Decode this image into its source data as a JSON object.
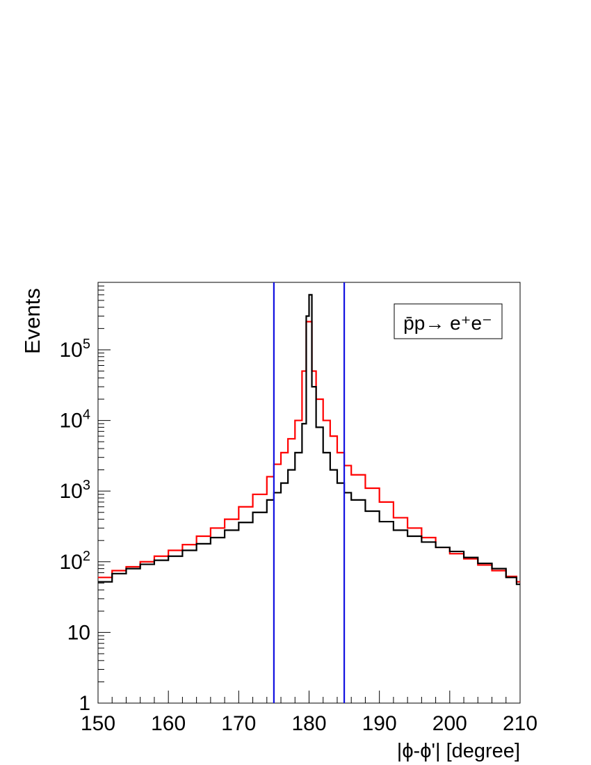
{
  "chart_data": {
    "type": "step-histogram",
    "title": "",
    "xlabel": "|ϕ-ϕ'| [degree]",
    "ylabel": "Events",
    "xlim": [
      150,
      210
    ],
    "ylim": [
      1,
      900000
    ],
    "y_scale": "log",
    "x_ticks": [
      150,
      160,
      170,
      180,
      190,
      200,
      210
    ],
    "x_tick_labels": [
      "150",
      "160",
      "170",
      "180",
      "190",
      "200",
      "210"
    ],
    "y_ticks": [
      {
        "value": 1,
        "base": "1",
        "exp": ""
      },
      {
        "value": 10,
        "base": "10",
        "exp": ""
      },
      {
        "value": 100,
        "base": "10",
        "exp": "2"
      },
      {
        "value": 1000,
        "base": "10",
        "exp": "3"
      },
      {
        "value": 10000,
        "base": "10",
        "exp": "4"
      },
      {
        "value": 100000,
        "base": "10",
        "exp": "5"
      }
    ],
    "legend": {
      "position": "top-right",
      "process_label": "p̄p→ e⁺e⁻"
    },
    "cut_lines": {
      "color": "#1010e0",
      "x": [
        175,
        185
      ]
    },
    "series": [
      {
        "color": "#ff0000",
        "bins": [
          {
            "x": 150,
            "y": 60
          },
          {
            "x": 152,
            "y": 75
          },
          {
            "x": 154,
            "y": 85
          },
          {
            "x": 156,
            "y": 100
          },
          {
            "x": 158,
            "y": 120
          },
          {
            "x": 160,
            "y": 145
          },
          {
            "x": 162,
            "y": 175
          },
          {
            "x": 164,
            "y": 230
          },
          {
            "x": 166,
            "y": 300
          },
          {
            "x": 168,
            "y": 400
          },
          {
            "x": 170,
            "y": 600
          },
          {
            "x": 172,
            "y": 900
          },
          {
            "x": 174,
            "y": 1600
          },
          {
            "x": 175,
            "y": 2400
          },
          {
            "x": 176,
            "y": 3500
          },
          {
            "x": 177,
            "y": 5500
          },
          {
            "x": 178,
            "y": 10000
          },
          {
            "x": 179,
            "y": 50000
          },
          {
            "x": 179.6,
            "y": 250000
          },
          {
            "x": 180.4,
            "y": 50000
          },
          {
            "x": 181,
            "y": 20000
          },
          {
            "x": 182,
            "y": 10000
          },
          {
            "x": 183,
            "y": 6000
          },
          {
            "x": 184,
            "y": 3500
          },
          {
            "x": 185,
            "y": 2300
          },
          {
            "x": 186,
            "y": 1700
          },
          {
            "x": 188,
            "y": 1100
          },
          {
            "x": 190,
            "y": 700
          },
          {
            "x": 192,
            "y": 420
          },
          {
            "x": 194,
            "y": 300
          },
          {
            "x": 196,
            "y": 220
          },
          {
            "x": 198,
            "y": 160
          },
          {
            "x": 200,
            "y": 130
          },
          {
            "x": 202,
            "y": 110
          },
          {
            "x": 204,
            "y": 90
          },
          {
            "x": 206,
            "y": 75
          },
          {
            "x": 208,
            "y": 62
          },
          {
            "x": 209.5,
            "y": 52
          },
          {
            "x": 210,
            "y": 52
          }
        ]
      },
      {
        "color": "#000000",
        "bins": [
          {
            "x": 150,
            "y": 52
          },
          {
            "x": 152,
            "y": 68
          },
          {
            "x": 154,
            "y": 80
          },
          {
            "x": 156,
            "y": 92
          },
          {
            "x": 158,
            "y": 105
          },
          {
            "x": 160,
            "y": 120
          },
          {
            "x": 162,
            "y": 145
          },
          {
            "x": 164,
            "y": 180
          },
          {
            "x": 166,
            "y": 220
          },
          {
            "x": 168,
            "y": 280
          },
          {
            "x": 170,
            "y": 360
          },
          {
            "x": 172,
            "y": 500
          },
          {
            "x": 174,
            "y": 750
          },
          {
            "x": 175,
            "y": 950
          },
          {
            "x": 176,
            "y": 1300
          },
          {
            "x": 177,
            "y": 2000
          },
          {
            "x": 178,
            "y": 3500
          },
          {
            "x": 179,
            "y": 9000
          },
          {
            "x": 179.6,
            "y": 300000
          },
          {
            "x": 180,
            "y": 600000
          },
          {
            "x": 180.4,
            "y": 30000
          },
          {
            "x": 181,
            "y": 8000
          },
          {
            "x": 182,
            "y": 3500
          },
          {
            "x": 183,
            "y": 2000
          },
          {
            "x": 184,
            "y": 1300
          },
          {
            "x": 185,
            "y": 950
          },
          {
            "x": 186,
            "y": 750
          },
          {
            "x": 188,
            "y": 520
          },
          {
            "x": 190,
            "y": 370
          },
          {
            "x": 192,
            "y": 280
          },
          {
            "x": 194,
            "y": 230
          },
          {
            "x": 196,
            "y": 190
          },
          {
            "x": 198,
            "y": 160
          },
          {
            "x": 200,
            "y": 140
          },
          {
            "x": 202,
            "y": 115
          },
          {
            "x": 204,
            "y": 95
          },
          {
            "x": 206,
            "y": 80
          },
          {
            "x": 208,
            "y": 60
          },
          {
            "x": 209.5,
            "y": 48
          },
          {
            "x": 210,
            "y": 48
          }
        ]
      }
    ]
  }
}
